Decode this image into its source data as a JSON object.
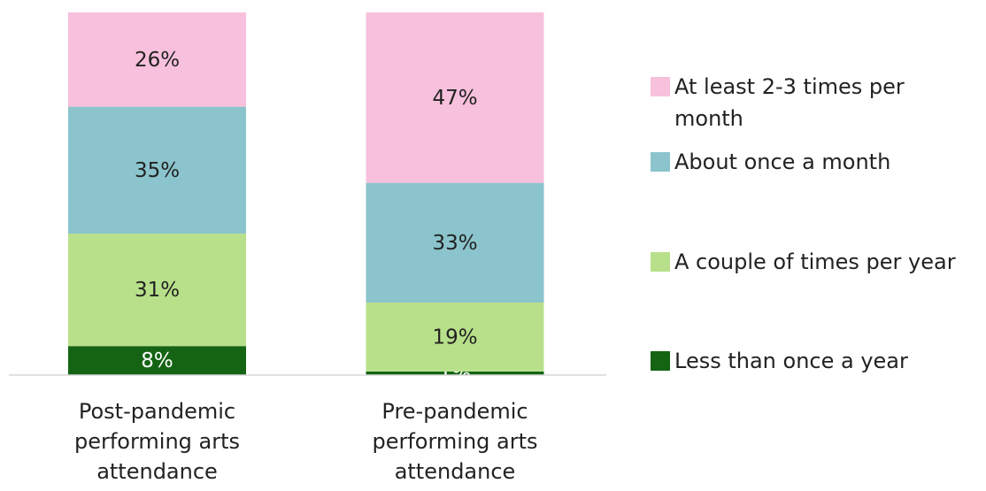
{
  "chart_data": {
    "type": "stacked-bar",
    "categories": [
      "Post-pandemic performing arts attendance",
      "Pre-pandemic performing arts attendance"
    ],
    "series": [
      {
        "name": "Less than once a year",
        "color": "#146414",
        "values": [
          8,
          1
        ],
        "value_labels": [
          "8%",
          "1%"
        ]
      },
      {
        "name": "A couple of times per year",
        "color": "#b8e08a",
        "values": [
          31,
          19
        ],
        "value_labels": [
          "31%",
          "19%"
        ]
      },
      {
        "name": "About once a month",
        "color": "#8bc4cc",
        "values": [
          35,
          33
        ],
        "value_labels": [
          "35%",
          "33%"
        ]
      },
      {
        "name": "At least 2-3 times per month",
        "color": "#f7c0dc",
        "values": [
          26,
          47
        ],
        "value_labels": [
          "26%",
          "47%"
        ]
      }
    ],
    "ylim": [
      0,
      100
    ]
  }
}
